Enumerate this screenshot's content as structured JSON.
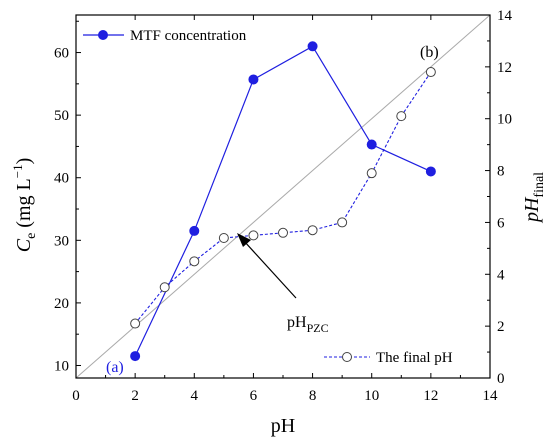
{
  "chart_data": {
    "type": "line",
    "xlabel": "pH",
    "ylabel": {
      "base": "C",
      "sub": "e",
      "unit_prefix": " (mg L",
      "unit_sup": "−1",
      "unit_suffix": ")"
    },
    "y2label": {
      "base": "pH",
      "sub": "final"
    },
    "xlim": [
      0,
      14
    ],
    "ylim": [
      8,
      66
    ],
    "y2lim": [
      0,
      14
    ],
    "x_ticks": [
      0,
      2,
      4,
      6,
      8,
      10,
      12,
      14
    ],
    "y_ticks": [
      10,
      20,
      30,
      40,
      50,
      60
    ],
    "y2_ticks": [
      0,
      2,
      4,
      6,
      8,
      10,
      12,
      14
    ],
    "grid": false,
    "legend_placement": [
      "top-left",
      "bottom-right"
    ],
    "series": [
      {
        "name": "MTF concentration",
        "axis": "left",
        "color": "#1f1fe0",
        "marker": "filled-circle",
        "line": "solid",
        "x": [
          2,
          4,
          6,
          8,
          10,
          12
        ],
        "y": [
          11.5,
          31.5,
          55.7,
          61.0,
          45.3,
          41.0
        ]
      },
      {
        "name": "The final pH",
        "axis": "right",
        "color": "#1f1fe0",
        "marker": "open-circle",
        "line": "dashed",
        "x": [
          2,
          3,
          4,
          5,
          6,
          7,
          8,
          9,
          10,
          11,
          12
        ],
        "y": [
          2.1,
          3.5,
          4.5,
          5.4,
          5.5,
          5.6,
          5.7,
          6.0,
          7.9,
          10.1,
          11.8
        ]
      }
    ],
    "reference_line": {
      "from": [
        0,
        0
      ],
      "to": [
        14,
        14
      ],
      "axis": "right",
      "color": "#aaaaaa"
    },
    "annotations": {
      "label_a": "(a)",
      "label_b": "(b)",
      "pzc": {
        "base": "pH",
        "sub": "PZC"
      }
    }
  }
}
